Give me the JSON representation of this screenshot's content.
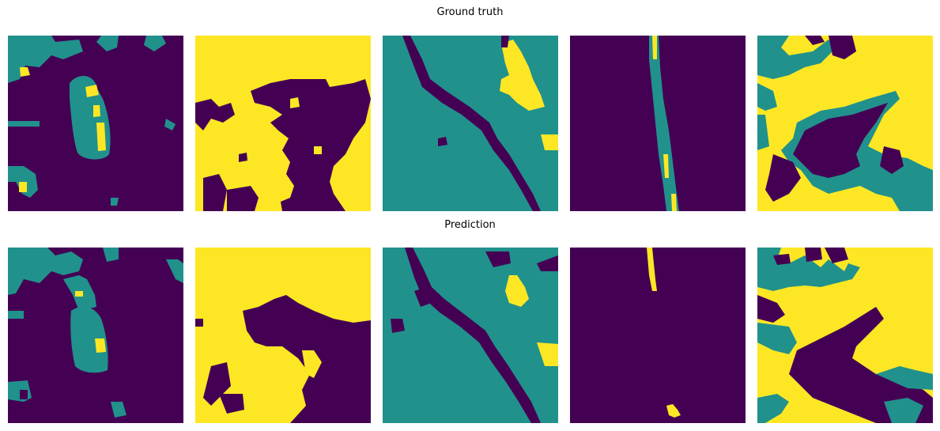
{
  "titles": {
    "top": "Ground truth",
    "bottom": "Prediction"
  },
  "colors": {
    "class_0": "#440154",
    "class_1": "#21918c",
    "class_2": "#fde725"
  },
  "ground_truth": {
    "panels": [
      {
        "background": "class_0",
        "description": "purple field with teal regions top-left and central teal blob with yellow patches"
      },
      {
        "background": "class_2",
        "description": "yellow field with large purple region in the lower right"
      },
      {
        "background": "class_1",
        "description": "teal field with diagonal purple river and yellow patch top-right"
      },
      {
        "background": "class_0",
        "description": "purple field with thin vertical teal and yellow strip"
      },
      {
        "background": "class_2",
        "description": "yellow and teal field with large purple region in center"
      }
    ]
  },
  "prediction": {
    "panels": [
      {
        "background": "class_0",
        "description": "purple field with teal regions top-left and central teal blob"
      },
      {
        "background": "class_2",
        "description": "yellow field with purple region bottom right"
      },
      {
        "background": "class_1",
        "description": "teal field with diagonal purple river and yellow patch"
      },
      {
        "background": "class_0",
        "description": "purple field with small yellow marks"
      },
      {
        "background": "class_2",
        "description": "yellow field with purple and teal regions"
      }
    ]
  }
}
